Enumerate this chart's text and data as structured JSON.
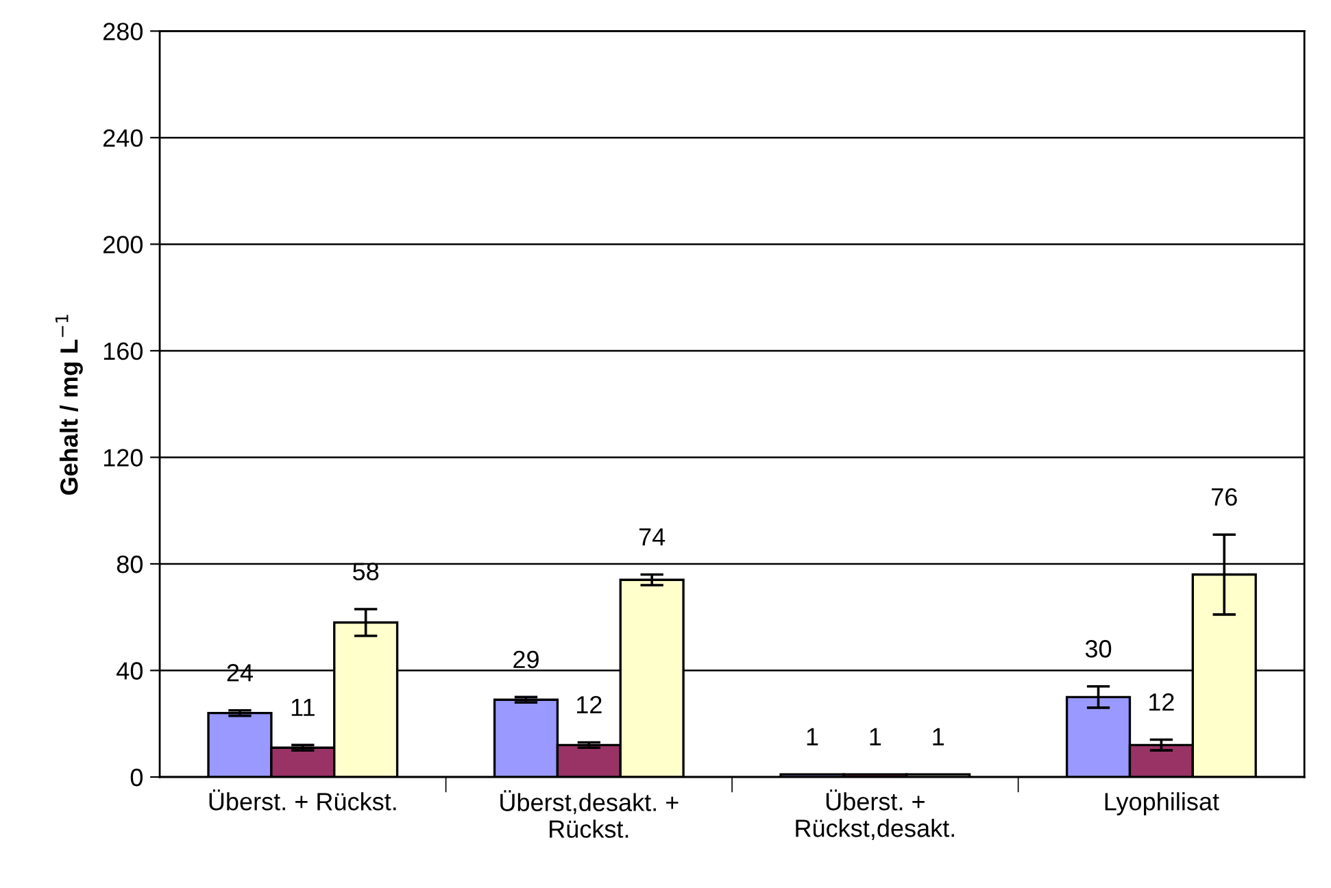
{
  "chart_data": {
    "type": "bar",
    "ylabel": "Gehalt / mg L$^{−1}$",
    "categories": [
      "Überst. + Rückst.",
      "Überst,desakt. +\nRückst.",
      "Überst. +\nRückst,desakt.",
      "Lyophilisat"
    ],
    "series": [
      {
        "color": "#9999ff",
        "values": [
          24,
          29,
          1,
          30
        ],
        "errors": [
          1,
          1,
          null,
          4
        ]
      },
      {
        "color": "#993366",
        "values": [
          11,
          12,
          1,
          12
        ],
        "errors": [
          1,
          1,
          null,
          2
        ]
      },
      {
        "color": "#ffffcc",
        "values": [
          58,
          74,
          1,
          76
        ],
        "errors": [
          5,
          2,
          null,
          15
        ]
      }
    ],
    "ylim": [
      0,
      280
    ],
    "yticks": [
      0,
      40,
      80,
      120,
      160,
      200,
      240,
      280
    ],
    "grid": "y",
    "data_labels": true,
    "legend": false
  }
}
